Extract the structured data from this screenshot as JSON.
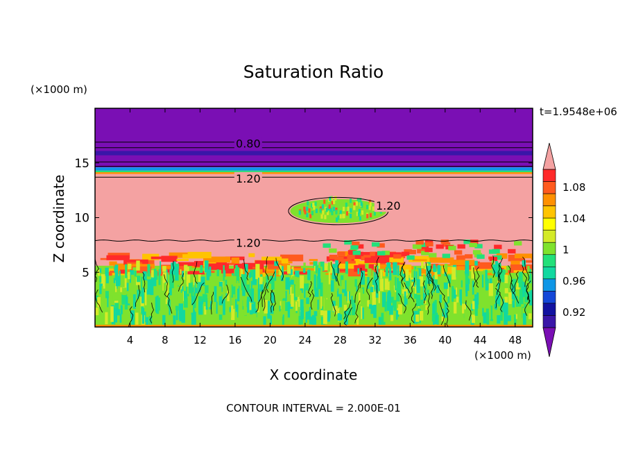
{
  "chart_data": {
    "type": "heatmap",
    "title": "Saturation Ratio",
    "xlabel": "X coordinate",
    "ylabel": "Z coordinate",
    "x_unit": "(×1000 m)",
    "y_unit": "(×1000 m)",
    "time_label": "t=1.9548e+06",
    "footer": "CONTOUR INTERVAL = 2.000E-01",
    "xlim": [
      0,
      50
    ],
    "ylim": [
      0,
      20
    ],
    "x_ticks": [
      4,
      8,
      12,
      16,
      20,
      24,
      28,
      32,
      36,
      40,
      44,
      48
    ],
    "y_ticks": [
      5,
      10,
      15
    ],
    "contour_labels": [
      {
        "text": "0.80",
        "x": 17.5,
        "y": 16.8
      },
      {
        "text": "1.20",
        "x": 17.5,
        "y": 13.6
      },
      {
        "text": "1.20",
        "x": 33.5,
        "y": 11.1
      },
      {
        "text": "1.20",
        "x": 17.5,
        "y": 7.7
      }
    ],
    "colorbar": {
      "labels": [
        "1.08",
        "1.04",
        "1",
        "0.96",
        "0.92"
      ],
      "colors": [
        "#7a0fb4",
        "#3a16a8",
        "#1212a0",
        "#1447d8",
        "#0f96e6",
        "#12d8a0",
        "#22e07a",
        "#7fe22d",
        "#d4ea28",
        "#ffff00",
        "#ffc400",
        "#ff9000",
        "#ff5a1e",
        "#ff2a2a",
        "#f4a2a2"
      ],
      "lower_extend_color": "#7a0fb4",
      "upper_extend_color": "#f4a2a2"
    }
  }
}
